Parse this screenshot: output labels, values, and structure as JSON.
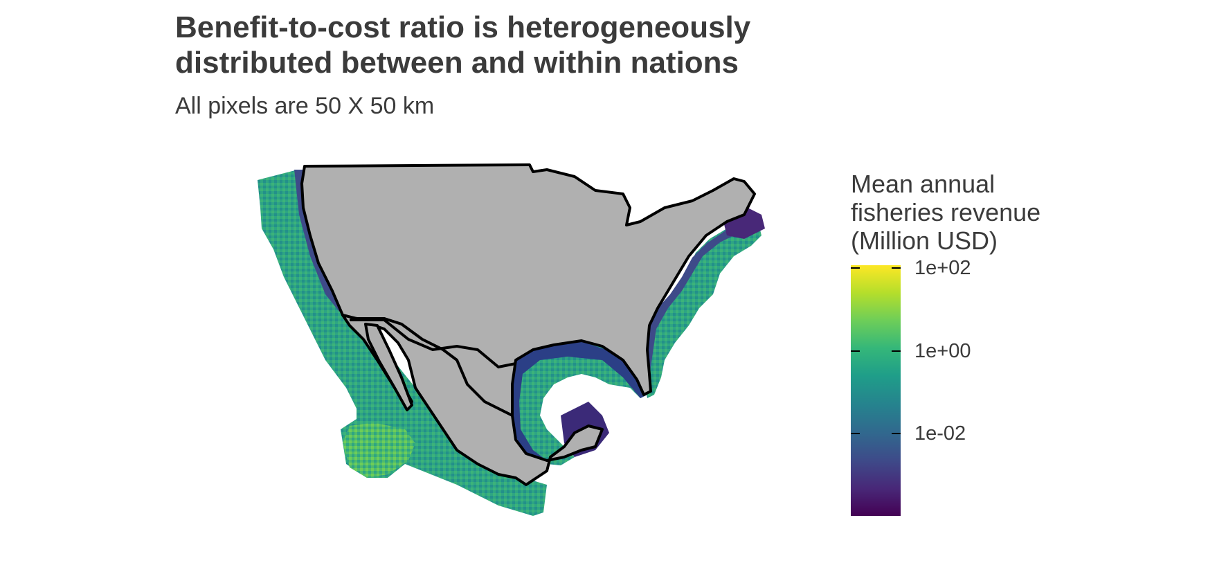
{
  "title_lines": [
    "Benefit-to-cost ratio is heterogeneously",
    "distributed between and within nations"
  ],
  "subtitle": "All pixels are 50 X 50 km",
  "legend": {
    "title_lines": [
      "Mean annual",
      "fisheries revenue",
      "(Million USD)"
    ],
    "ticks": [
      "1e+02",
      "1e+00",
      "1e-02"
    ],
    "palette": [
      "#440154",
      "#482878",
      "#3e4a89",
      "#31688e",
      "#26828e",
      "#1f9e89",
      "#35b779",
      "#6ece58",
      "#b5de2b",
      "#fde725"
    ]
  },
  "map": {
    "land_color": "#b0b0b0",
    "border_color": "#000000"
  }
}
